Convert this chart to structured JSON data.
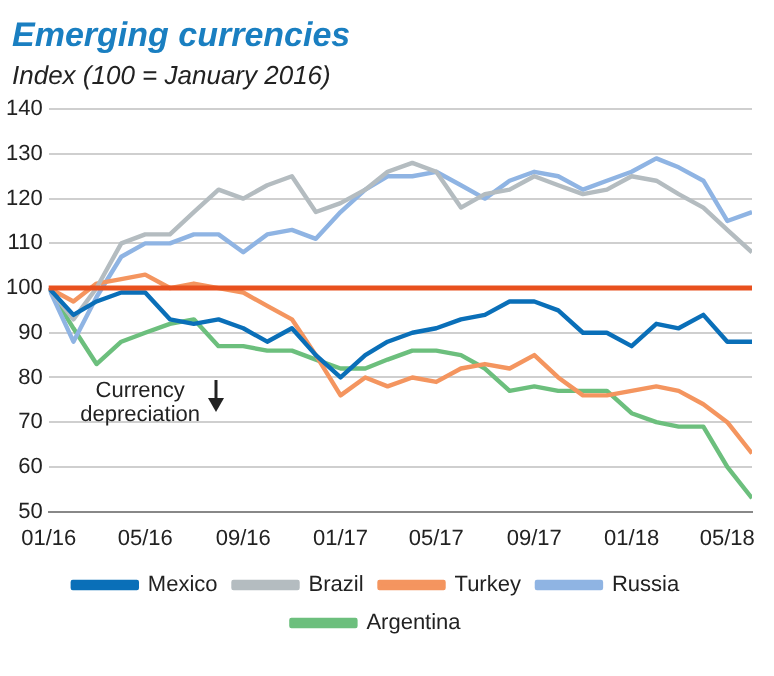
{
  "chart_data": {
    "type": "line",
    "title": "Emerging currencies",
    "subtitle": "Index (100 = January 2016)",
    "x": [
      "2016-01",
      "2016-02",
      "2016-03",
      "2016-04",
      "2016-05",
      "2016-06",
      "2016-07",
      "2016-08",
      "2016-09",
      "2016-10",
      "2016-11",
      "2016-12",
      "2017-01",
      "2017-02",
      "2017-03",
      "2017-04",
      "2017-05",
      "2017-06",
      "2017-07",
      "2017-08",
      "2017-09",
      "2017-10",
      "2017-11",
      "2017-12",
      "2018-01",
      "2018-02",
      "2018-03",
      "2018-04",
      "2018-05",
      "2018-06"
    ],
    "series": [
      {
        "name": "Mexico",
        "color": "#0a6fb8",
        "values": [
          100,
          94,
          97,
          99,
          99,
          93,
          92,
          93,
          91,
          88,
          91,
          85,
          80,
          85,
          88,
          90,
          91,
          93,
          94,
          97,
          97,
          95,
          90,
          90,
          87,
          92,
          91,
          94,
          88,
          88
        ]
      },
      {
        "name": "Brazil",
        "color": "#b4bcc0",
        "values": [
          100,
          93,
          100,
          110,
          112,
          112,
          117,
          122,
          120,
          123,
          125,
          117,
          119,
          122,
          126,
          128,
          126,
          118,
          121,
          122,
          125,
          123,
          121,
          122,
          125,
          124,
          121,
          118,
          113,
          108
        ]
      },
      {
        "name": "Turkey",
        "color": "#f4955f",
        "values": [
          100,
          97,
          101,
          102,
          103,
          100,
          101,
          100,
          99,
          96,
          93,
          85,
          76,
          80,
          78,
          80,
          79,
          82,
          83,
          82,
          85,
          80,
          76,
          76,
          77,
          78,
          77,
          74,
          70,
          63
        ]
      },
      {
        "name": "Russia",
        "color": "#8fb4e3",
        "values": [
          100,
          88,
          98,
          107,
          110,
          110,
          112,
          112,
          108,
          112,
          113,
          111,
          117,
          122,
          125,
          125,
          126,
          123,
          120,
          124,
          126,
          125,
          122,
          124,
          126,
          129,
          127,
          124,
          115,
          117
        ]
      },
      {
        "name": "Argentina",
        "color": "#6cbf7d",
        "values": [
          100,
          91,
          83,
          88,
          90,
          92,
          93,
          87,
          87,
          86,
          86,
          84,
          82,
          82,
          84,
          86,
          86,
          85,
          82,
          77,
          78,
          77,
          77,
          77,
          72,
          70,
          69,
          69,
          60,
          53
        ]
      }
    ],
    "xlim": [
      "2016-01",
      "2018-06"
    ],
    "xticks": [
      {
        "value": "2016-01",
        "label": "01/16"
      },
      {
        "value": "2016-05",
        "label": "05/16"
      },
      {
        "value": "2016-09",
        "label": "09/16"
      },
      {
        "value": "2017-01",
        "label": "01/17"
      },
      {
        "value": "2017-05",
        "label": "05/17"
      },
      {
        "value": "2017-09",
        "label": "09/17"
      },
      {
        "value": "2018-01",
        "label": "01/18"
      },
      {
        "value": "2018-05",
        "label": "05/18"
      }
    ],
    "ylim": [
      50,
      140
    ],
    "yticks": [
      50,
      60,
      70,
      80,
      90,
      100,
      110,
      120,
      130,
      140
    ],
    "ref_lines": [
      {
        "axis": "y",
        "value": 100,
        "color": "#e8501e"
      }
    ],
    "annotations": [
      "Currency depreciation"
    ],
    "grid": "y",
    "legend": "bottom",
    "marker": "none",
    "line_style": "solid"
  }
}
